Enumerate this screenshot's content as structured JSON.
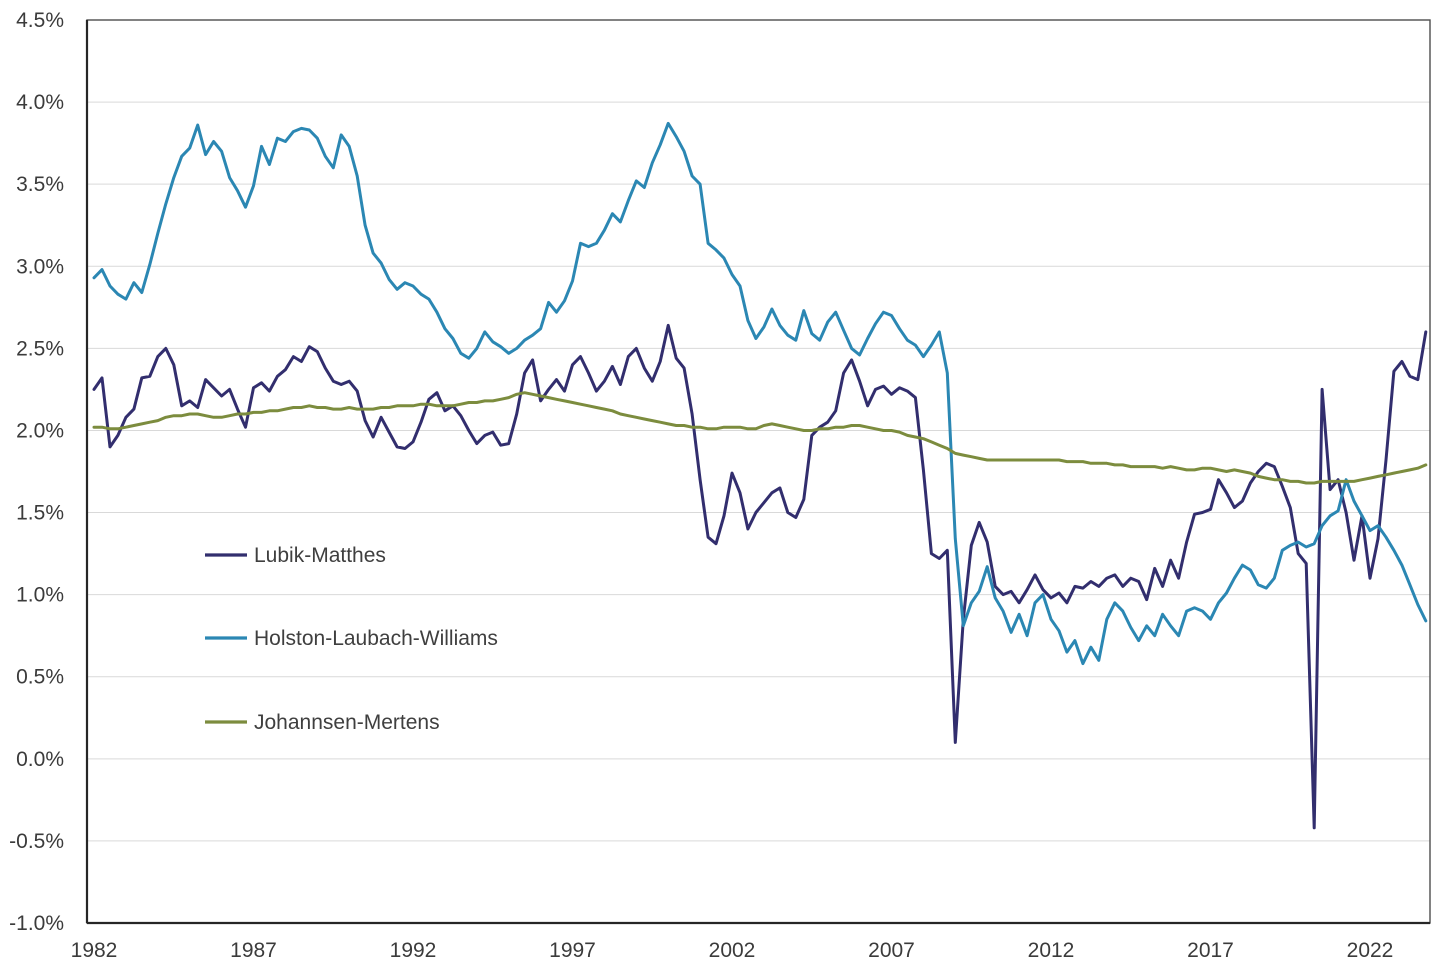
{
  "figure": {
    "type": "line-chart",
    "background": "#ffffff"
  },
  "colors": {
    "grid": "#d9d9d9",
    "border": "#4d4d4d",
    "axis": "#262626",
    "tick_text": "#3b3b3b",
    "legend_text": "#3f3f3f"
  },
  "legend": [
    {
      "label": "Lubik-Matthes",
      "color": "#322E6E"
    },
    {
      "label": "Holston-Laubach-Williams",
      "color": "#2B87B3"
    },
    {
      "label": "Johannsen-Mertens",
      "color": "#7C8C3E"
    }
  ],
  "chart_data": {
    "type": "line",
    "title": "",
    "xlabel": "",
    "ylabel": "",
    "x_start": 1982.0,
    "x_step": 0.25,
    "n_points": 168,
    "ylim": [
      -1.0,
      4.5
    ],
    "grid": "horizontal",
    "legend_position": "inside-left",
    "y_ticks": [
      {
        "label": "4.5%",
        "value": 4.5
      },
      {
        "label": "4.0%",
        "value": 4.0
      },
      {
        "label": "3.5%",
        "value": 3.5
      },
      {
        "label": "3.0%",
        "value": 3.0
      },
      {
        "label": "2.5%",
        "value": 2.5
      },
      {
        "label": "2.0%",
        "value": 2.0
      },
      {
        "label": "1.5%",
        "value": 1.5
      },
      {
        "label": "1.0%",
        "value": 1.0
      },
      {
        "label": "0.5%",
        "value": 0.5
      },
      {
        "label": "0.0%",
        "value": 0.0
      },
      {
        "label": "-0.5%",
        "value": -0.5
      },
      {
        "label": "-1.0%",
        "value": -1.0
      }
    ],
    "x_ticks": [
      {
        "label": "1982",
        "value": 1982
      },
      {
        "label": "1987",
        "value": 1987
      },
      {
        "label": "1992",
        "value": 1992
      },
      {
        "label": "1997",
        "value": 1997
      },
      {
        "label": "2002",
        "value": 2002
      },
      {
        "label": "2007",
        "value": 2007
      },
      {
        "label": "2012",
        "value": 2012
      },
      {
        "label": "2017",
        "value": 2017
      },
      {
        "label": "2022",
        "value": 2022
      }
    ],
    "series": [
      {
        "name": "Lubik-Matthes",
        "color": "#322E6E",
        "values": [
          2.25,
          2.32,
          1.9,
          1.97,
          2.08,
          2.13,
          2.32,
          2.33,
          2.45,
          2.5,
          2.4,
          2.15,
          2.18,
          2.14,
          2.31,
          2.26,
          2.21,
          2.25,
          2.13,
          2.02,
          2.26,
          2.29,
          2.24,
          2.33,
          2.37,
          2.45,
          2.42,
          2.51,
          2.48,
          2.38,
          2.3,
          2.28,
          2.3,
          2.24,
          2.06,
          1.96,
          2.08,
          1.99,
          1.9,
          1.89,
          1.93,
          2.05,
          2.19,
          2.23,
          2.12,
          2.15,
          2.09,
          2.0,
          1.92,
          1.97,
          1.99,
          1.91,
          1.92,
          2.1,
          2.35,
          2.43,
          2.18,
          2.25,
          2.31,
          2.24,
          2.4,
          2.45,
          2.35,
          2.24,
          2.3,
          2.39,
          2.28,
          2.45,
          2.5,
          2.38,
          2.3,
          2.42,
          2.64,
          2.44,
          2.38,
          2.1,
          1.7,
          1.35,
          1.31,
          1.48,
          1.74,
          1.62,
          1.4,
          1.5,
          1.56,
          1.62,
          1.65,
          1.5,
          1.47,
          1.58,
          1.97,
          2.02,
          2.05,
          2.12,
          2.35,
          2.43,
          2.3,
          2.15,
          2.25,
          2.27,
          2.22,
          2.26,
          2.24,
          2.2,
          1.76,
          1.25,
          1.22,
          1.27,
          0.1,
          0.85,
          1.3,
          1.44,
          1.32,
          1.05,
          1.0,
          1.02,
          0.95,
          1.03,
          1.12,
          1.03,
          0.98,
          1.01,
          0.95,
          1.05,
          1.04,
          1.08,
          1.05,
          1.1,
          1.12,
          1.05,
          1.1,
          1.08,
          0.97,
          1.16,
          1.05,
          1.21,
          1.1,
          1.32,
          1.49,
          1.5,
          1.52,
          1.7,
          1.62,
          1.53,
          1.57,
          1.68,
          1.75,
          1.8,
          1.78,
          1.66,
          1.53,
          1.25,
          1.19,
          -0.42,
          2.25,
          1.64,
          1.7,
          1.5,
          1.21,
          1.48,
          1.1,
          1.34,
          1.82,
          2.36,
          2.42,
          2.33,
          2.31,
          2.6
        ]
      },
      {
        "name": "Holston-Laubach-Williams",
        "color": "#2B87B3",
        "values": [
          2.93,
          2.98,
          2.88,
          2.83,
          2.8,
          2.9,
          2.84,
          3.01,
          3.2,
          3.38,
          3.54,
          3.67,
          3.72,
          3.86,
          3.68,
          3.76,
          3.7,
          3.54,
          3.46,
          3.36,
          3.49,
          3.73,
          3.62,
          3.78,
          3.76,
          3.82,
          3.84,
          3.83,
          3.78,
          3.67,
          3.6,
          3.8,
          3.73,
          3.55,
          3.25,
          3.08,
          3.02,
          2.92,
          2.86,
          2.9,
          2.88,
          2.83,
          2.8,
          2.72,
          2.62,
          2.56,
          2.47,
          2.44,
          2.5,
          2.6,
          2.54,
          2.51,
          2.47,
          2.5,
          2.55,
          2.58,
          2.62,
          2.78,
          2.72,
          2.79,
          2.91,
          3.14,
          3.12,
          3.14,
          3.22,
          3.32,
          3.27,
          3.4,
          3.52,
          3.48,
          3.63,
          3.74,
          3.87,
          3.79,
          3.7,
          3.55,
          3.5,
          3.14,
          3.1,
          3.05,
          2.95,
          2.88,
          2.67,
          2.56,
          2.63,
          2.74,
          2.64,
          2.58,
          2.55,
          2.73,
          2.59,
          2.55,
          2.66,
          2.72,
          2.61,
          2.5,
          2.46,
          2.56,
          2.65,
          2.72,
          2.7,
          2.62,
          2.55,
          2.52,
          2.45,
          2.52,
          2.6,
          2.35,
          1.34,
          0.81,
          0.95,
          1.02,
          1.17,
          0.98,
          0.9,
          0.77,
          0.88,
          0.75,
          0.95,
          1.0,
          0.85,
          0.78,
          0.65,
          0.72,
          0.58,
          0.68,
          0.6,
          0.85,
          0.95,
          0.9,
          0.8,
          0.72,
          0.81,
          0.75,
          0.88,
          0.81,
          0.75,
          0.9,
          0.92,
          0.9,
          0.85,
          0.95,
          1.01,
          1.1,
          1.18,
          1.15,
          1.06,
          1.04,
          1.1,
          1.27,
          1.3,
          1.32,
          1.29,
          1.31,
          1.42,
          1.48,
          1.51,
          1.7,
          1.57,
          1.48,
          1.39,
          1.42,
          1.35,
          1.27,
          1.18,
          1.06,
          0.94,
          0.84
        ]
      },
      {
        "name": "Johannsen-Mertens",
        "color": "#7C8C3E",
        "values": [
          2.02,
          2.02,
          2.01,
          2.01,
          2.02,
          2.03,
          2.04,
          2.05,
          2.06,
          2.08,
          2.09,
          2.09,
          2.1,
          2.1,
          2.09,
          2.08,
          2.08,
          2.09,
          2.1,
          2.1,
          2.11,
          2.11,
          2.12,
          2.12,
          2.13,
          2.14,
          2.14,
          2.15,
          2.14,
          2.14,
          2.13,
          2.13,
          2.14,
          2.13,
          2.13,
          2.13,
          2.14,
          2.14,
          2.15,
          2.15,
          2.15,
          2.16,
          2.16,
          2.15,
          2.15,
          2.15,
          2.16,
          2.17,
          2.17,
          2.18,
          2.18,
          2.19,
          2.2,
          2.22,
          2.23,
          2.22,
          2.21,
          2.2,
          2.19,
          2.18,
          2.17,
          2.16,
          2.15,
          2.14,
          2.13,
          2.12,
          2.1,
          2.09,
          2.08,
          2.07,
          2.06,
          2.05,
          2.04,
          2.03,
          2.03,
          2.02,
          2.02,
          2.01,
          2.01,
          2.02,
          2.02,
          2.02,
          2.01,
          2.01,
          2.03,
          2.04,
          2.03,
          2.02,
          2.01,
          2.0,
          2.0,
          2.01,
          2.01,
          2.02,
          2.02,
          2.03,
          2.03,
          2.02,
          2.01,
          2.0,
          2.0,
          1.99,
          1.97,
          1.96,
          1.95,
          1.93,
          1.91,
          1.89,
          1.86,
          1.85,
          1.84,
          1.83,
          1.82,
          1.82,
          1.82,
          1.82,
          1.82,
          1.82,
          1.82,
          1.82,
          1.82,
          1.82,
          1.81,
          1.81,
          1.81,
          1.8,
          1.8,
          1.8,
          1.79,
          1.79,
          1.78,
          1.78,
          1.78,
          1.78,
          1.77,
          1.78,
          1.77,
          1.76,
          1.76,
          1.77,
          1.77,
          1.76,
          1.75,
          1.76,
          1.75,
          1.74,
          1.72,
          1.71,
          1.7,
          1.7,
          1.69,
          1.69,
          1.68,
          1.68,
          1.69,
          1.69,
          1.69,
          1.69,
          1.69,
          1.7,
          1.71,
          1.72,
          1.73,
          1.74,
          1.75,
          1.76,
          1.77,
          1.79
        ]
      }
    ]
  }
}
